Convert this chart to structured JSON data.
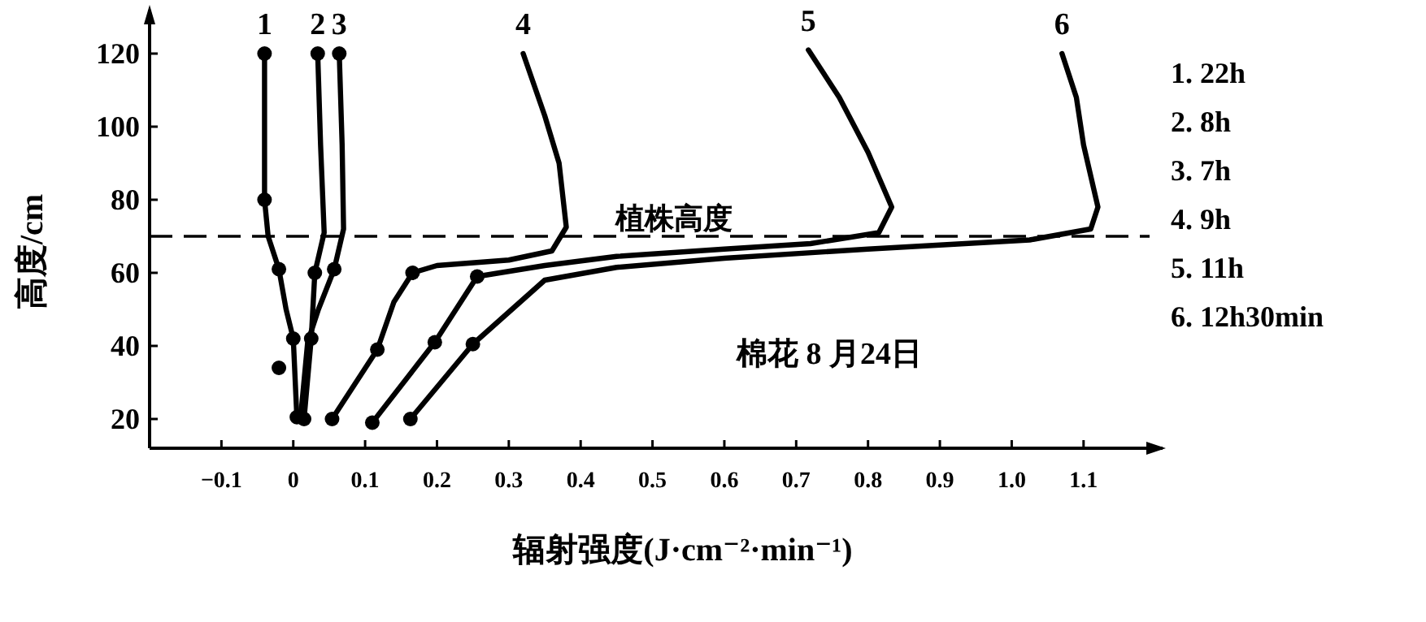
{
  "chart_data": {
    "type": "line",
    "xlabel": "辐射强度(J·cm⁻²·min⁻¹)",
    "ylabel": "高度/cm",
    "xlim": [
      -0.2,
      1.21
    ],
    "ylim": [
      12,
      132
    ],
    "xticks": [
      -0.1,
      0,
      0.1,
      0.2,
      0.3,
      0.4,
      0.5,
      0.6,
      0.7,
      0.8,
      0.9,
      {
        "value": 1.0,
        "label": "1.0"
      },
      1.1
    ],
    "yticks": [
      20,
      40,
      60,
      80,
      100,
      120
    ],
    "grid": false,
    "marker": "none",
    "line_style": "solid",
    "series": [
      {
        "name": "1",
        "color": "#000000",
        "x": [
          -0.04,
          -0.04,
          -0.04,
          -0.035,
          -0.02,
          -0.01,
          0,
          0.005
        ],
        "values": [
          120,
          100,
          80,
          70,
          61,
          50,
          42,
          20.5
        ]
      },
      {
        "name": "2",
        "color": "#000000",
        "x": [
          0.034,
          0.038,
          0.043,
          0.03,
          0.025,
          0.015
        ],
        "values": [
          120,
          95,
          71,
          60,
          42,
          20
        ]
      },
      {
        "name": "3",
        "color": "#000000",
        "x": [
          0.064,
          0.068,
          0.07,
          0.057,
          0.035,
          0.02,
          0.01
        ],
        "values": [
          120,
          95,
          72,
          61,
          50,
          41,
          20
        ]
      },
      {
        "name": "4",
        "color": "#000000",
        "x": [
          0.32,
          0.35,
          0.37,
          0.38,
          0.36,
          0.3,
          0.2,
          0.166,
          0.14,
          0.117,
          0.054
        ],
        "values": [
          120,
          103,
          90,
          72.5,
          66,
          63.5,
          62,
          60,
          52,
          39,
          20
        ]
      },
      {
        "name": "5",
        "color": "#000000",
        "x": [
          0.717,
          0.76,
          0.8,
          0.833,
          0.815,
          0.72,
          0.6,
          0.45,
          0.35,
          0.256,
          0.197,
          0.11
        ],
        "values": [
          121,
          108,
          93,
          78,
          71,
          68,
          66.5,
          64.5,
          62,
          59,
          41,
          19
        ]
      },
      {
        "name": "6",
        "color": "#000000",
        "x": [
          1.07,
          1.09,
          1.1,
          1.12,
          1.11,
          1.025,
          0.8,
          0.6,
          0.45,
          0.35,
          0.25,
          0.163
        ],
        "values": [
          120,
          108,
          95,
          78,
          72,
          69,
          66.5,
          64,
          61.5,
          58,
          40.5,
          20
        ]
      },
      {
        "type": "scatter",
        "marker": "circle",
        "color": "#000000",
        "x": [
          -0.04,
          -0.04,
          -0.02,
          0,
          -0.02,
          0.005,
          0.034,
          0.03,
          0.025,
          0.015,
          0.064,
          0.057,
          0.166,
          0.117,
          0.054,
          0.256,
          0.197,
          0.11,
          0.25,
          0.163
        ],
        "values": [
          120,
          80,
          61,
          42,
          34,
          20.5,
          120,
          60,
          42,
          20,
          120,
          61,
          60,
          39,
          20,
          59,
          41,
          19,
          40.5,
          20
        ]
      }
    ],
    "ref_lines": [
      {
        "axis": "y",
        "value": 70,
        "label": "植株高度",
        "line_style": "dashed",
        "color": "#000000"
      }
    ],
    "annotations": [
      "棉花 8 月24日",
      "1. 22h",
      "2. 8h",
      "3. 7h",
      "4. 9h",
      "5. 11h",
      "6. 12h30min"
    ]
  }
}
